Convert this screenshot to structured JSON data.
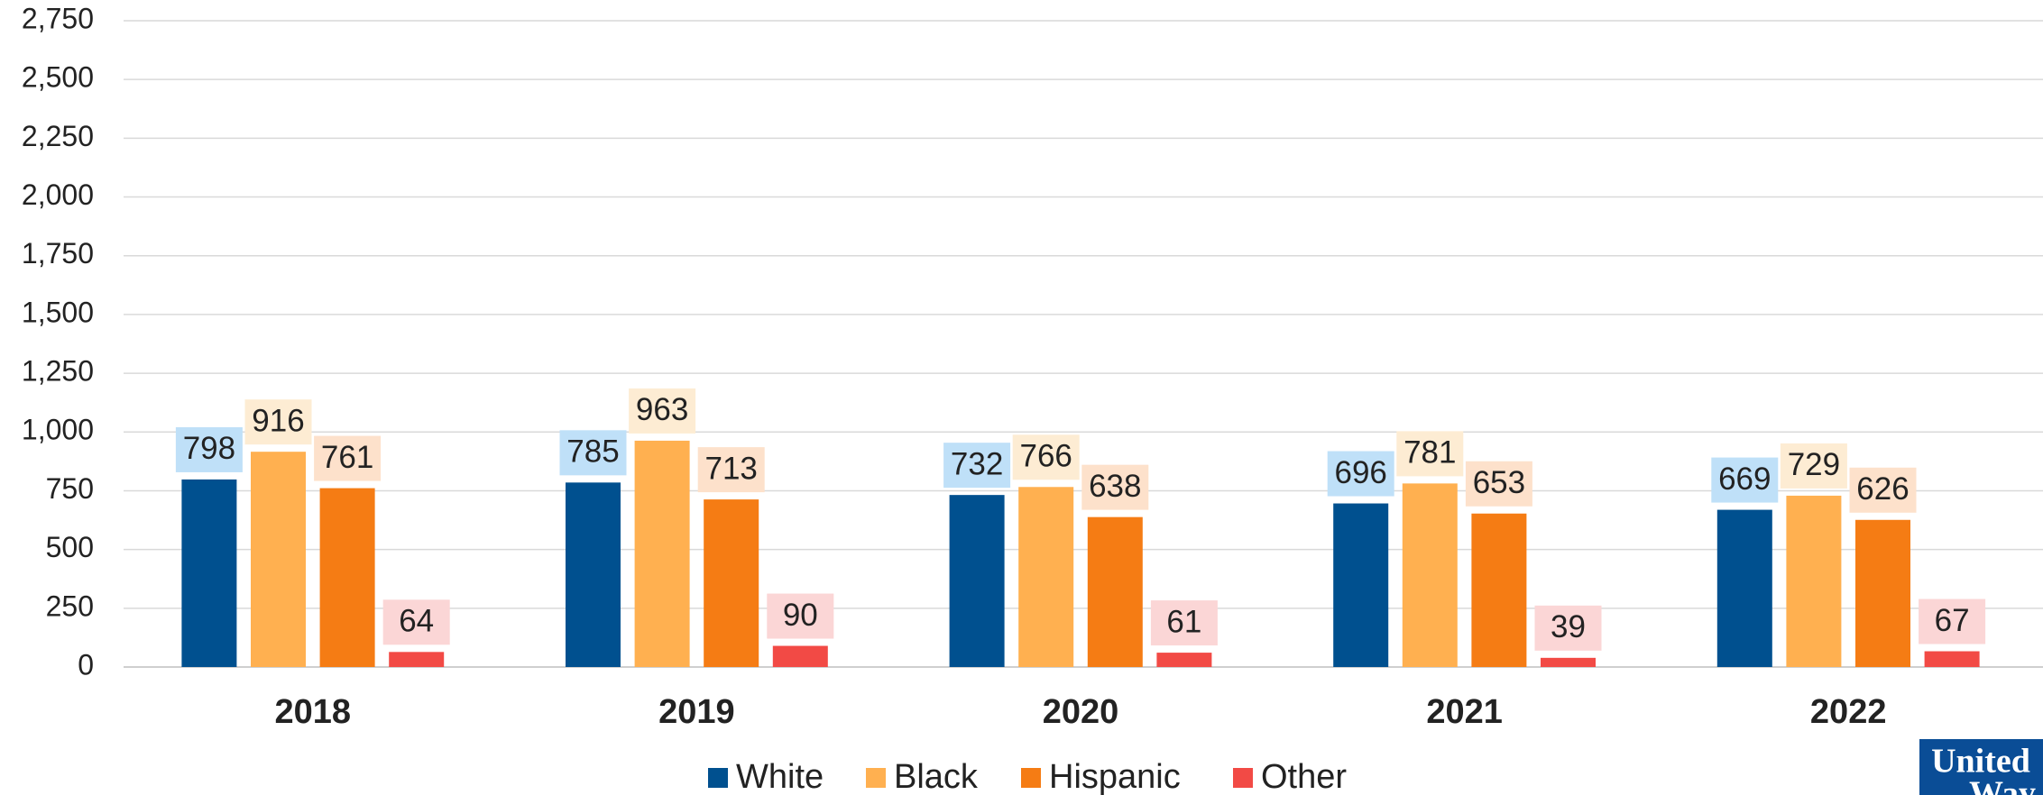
{
  "chart_data": {
    "type": "bar",
    "categories": [
      "2018",
      "2019",
      "2020",
      "2021",
      "2022"
    ],
    "series": [
      {
        "name": "White",
        "color": "#00508f",
        "label_color": "#bfe0f8",
        "values": [
          798,
          785,
          732,
          696,
          669
        ]
      },
      {
        "name": "Black",
        "color": "#ffb050",
        "label_color": "#fdecd3",
        "values": [
          916,
          963,
          766,
          781,
          729
        ]
      },
      {
        "name": "Hispanic",
        "color": "#f57c14",
        "label_color": "#fde1cb",
        "values": [
          761,
          713,
          638,
          653,
          626
        ]
      },
      {
        "name": "Other",
        "color": "#f24a45",
        "label_color": "#fbd6d6",
        "values": [
          64,
          90,
          61,
          39,
          67
        ]
      }
    ],
    "ylim": [
      0,
      2750
    ],
    "yticks": [
      0,
      250,
      500,
      750,
      {
        "value": 1000,
        "label": "1,000"
      },
      {
        "value": 1250,
        "label": "1,250"
      },
      {
        "value": 1500,
        "label": "1,500"
      },
      {
        "value": 1750,
        "label": "1,750"
      },
      {
        "value": 2000,
        "label": "2,000"
      },
      {
        "value": 2250,
        "label": "2,250"
      },
      {
        "value": 2500,
        "label": "2,500"
      },
      {
        "value": 2750,
        "label": "2,750"
      }
    ],
    "grid": true,
    "legend": "bottom",
    "logo": [
      "United",
      "Way"
    ]
  }
}
